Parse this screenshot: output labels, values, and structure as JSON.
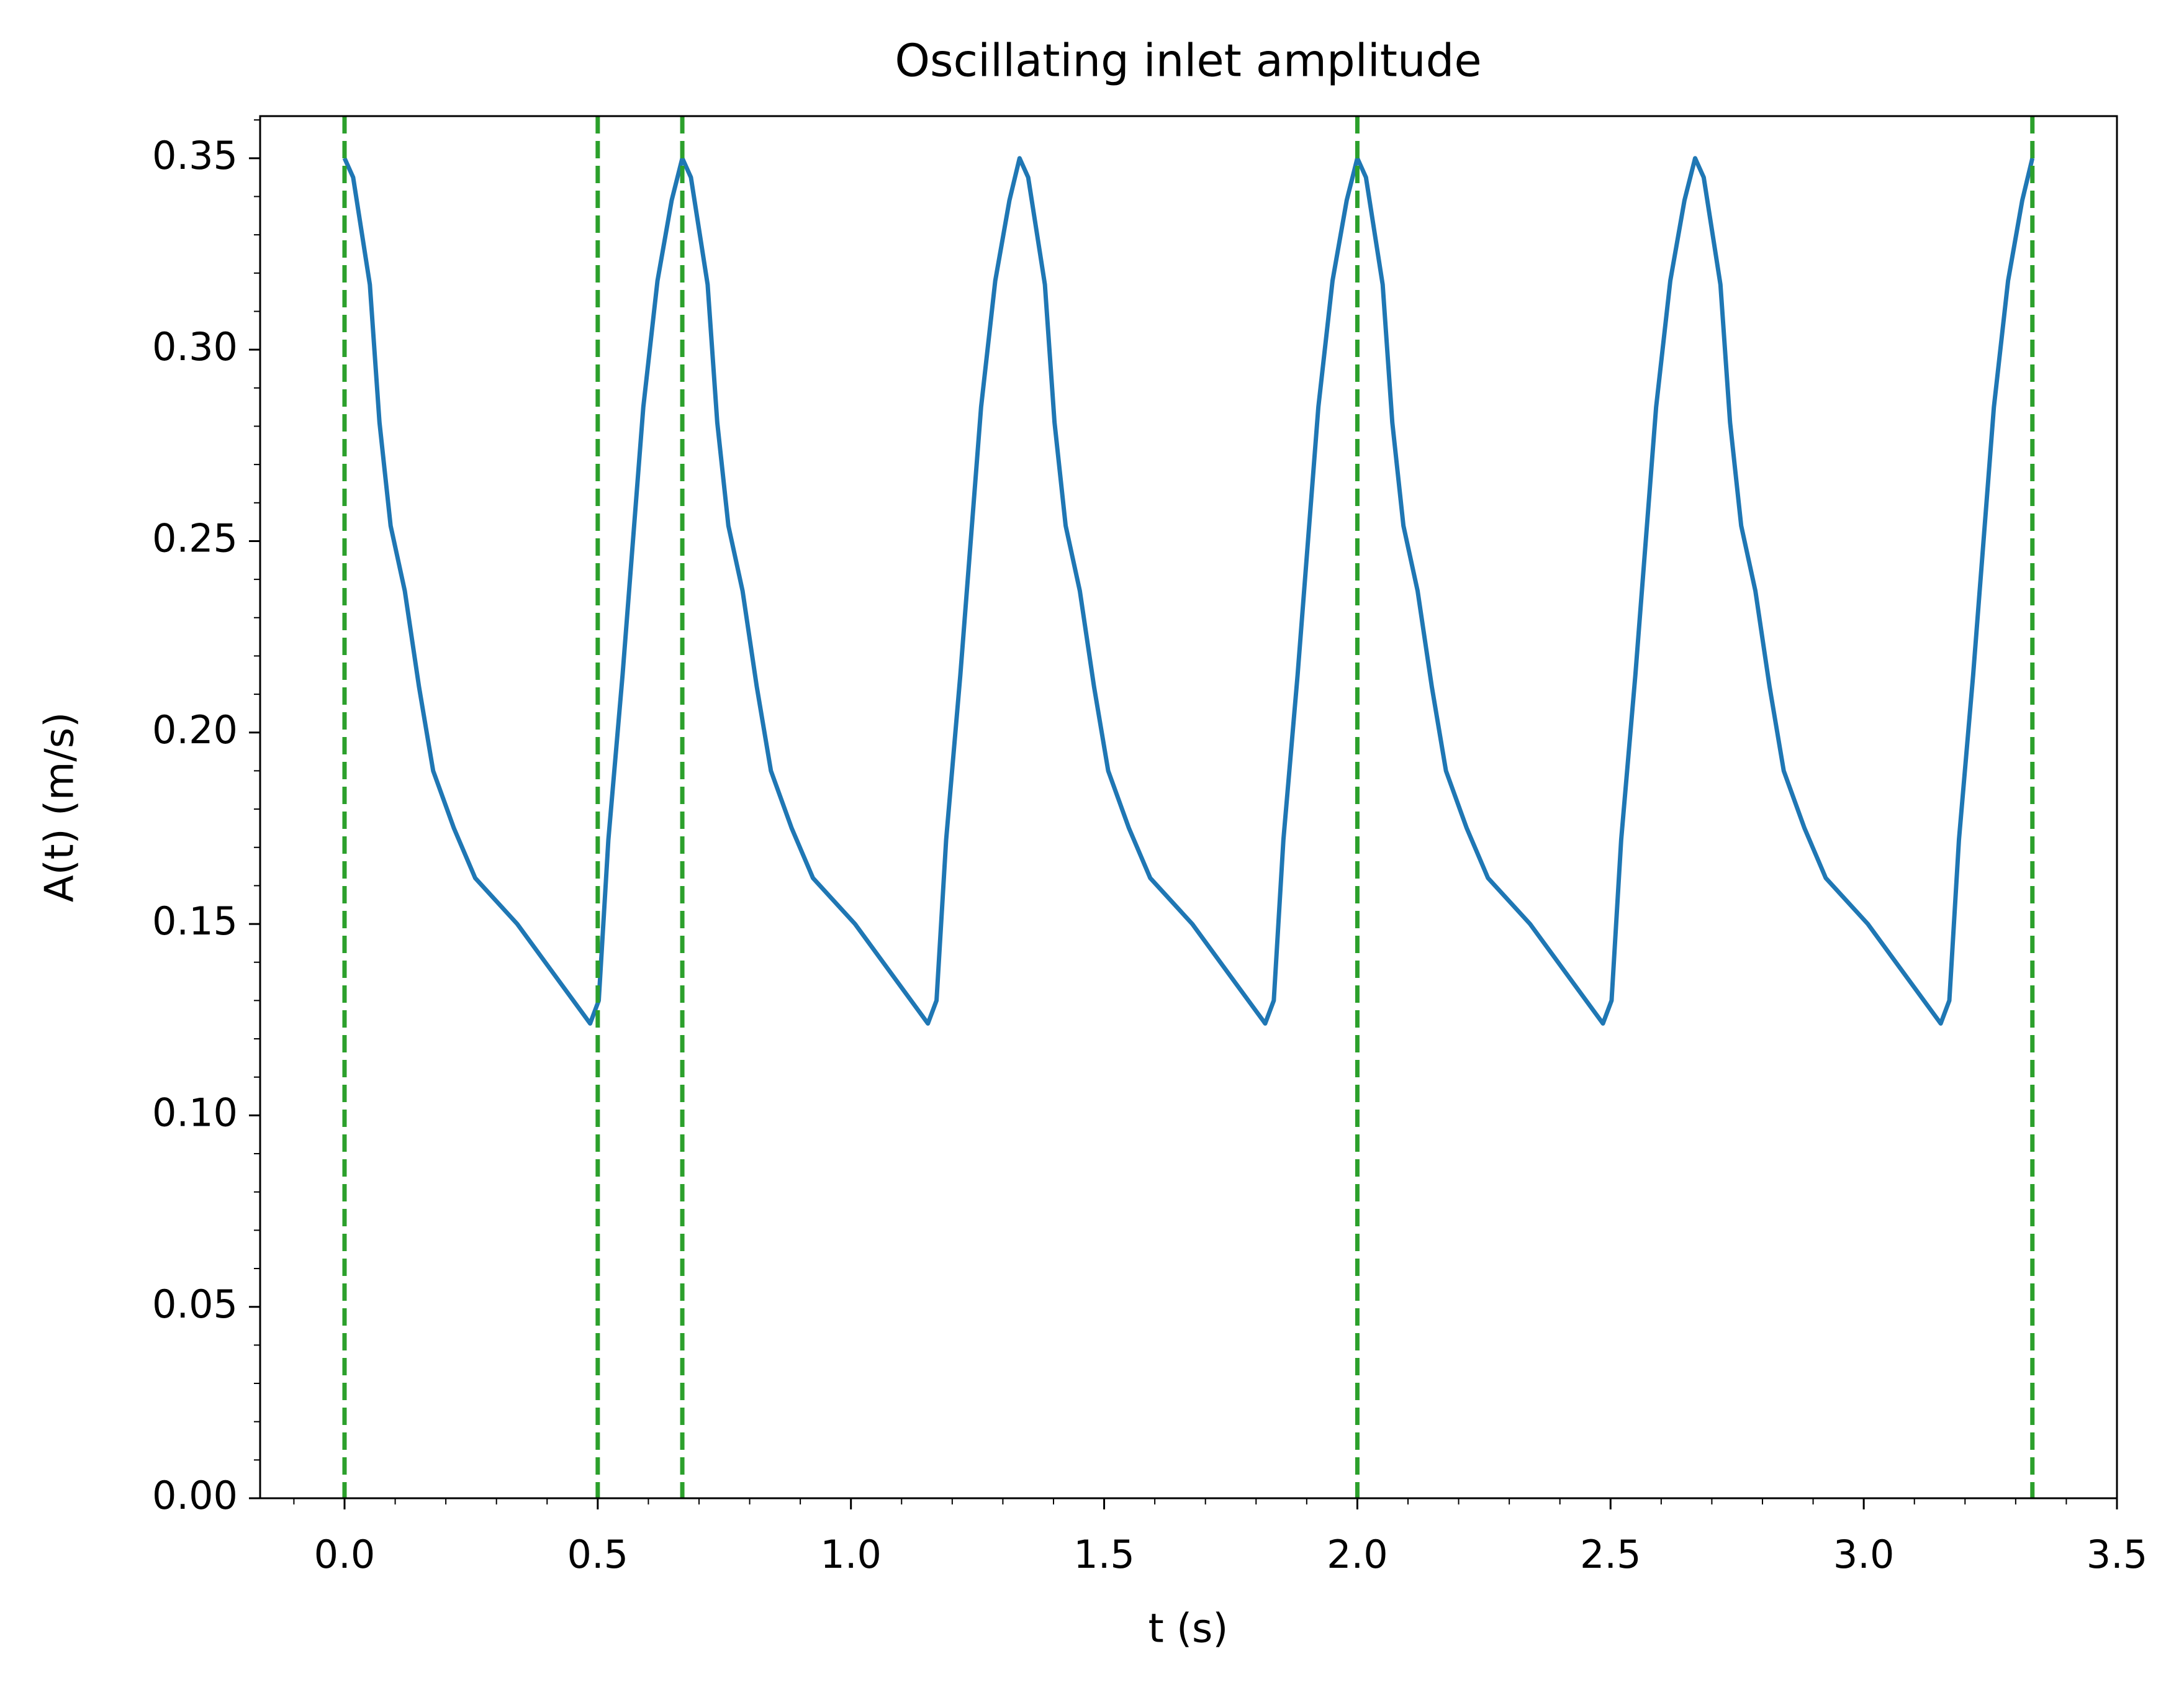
{
  "chart_data": {
    "type": "line",
    "title": "Oscillating inlet amplitude",
    "xlabel": "t (s)",
    "ylabel": "A(t) (m/s)",
    "xlim": [
      -0.1667,
      3.5
    ],
    "ylim": [
      0,
      0.361
    ],
    "xticks": [
      {
        "value": 0,
        "label": "0.0"
      },
      0.5,
      {
        "value": 1,
        "label": "1.0"
      },
      1.5,
      {
        "value": 2,
        "label": "2.0"
      },
      2.5,
      {
        "value": 3,
        "label": "3.0"
      },
      3.5
    ],
    "yticks": [
      {
        "value": 0,
        "label": "0.00"
      },
      0.05,
      {
        "value": 0.1,
        "label": "0.10"
      },
      0.15,
      {
        "value": 0.2,
        "label": "0.20"
      },
      0.25,
      {
        "value": 0.3,
        "label": "0.30"
      },
      0.35
    ],
    "xminorticks": [
      -0.1,
      0.1,
      0.2,
      0.3,
      0.4,
      0.6,
      0.7,
      0.8,
      0.9,
      1.1,
      1.2,
      1.3,
      1.4,
      1.6,
      1.7,
      1.8,
      1.9,
      2.1,
      2.2,
      2.3,
      2.4,
      2.6,
      2.7,
      2.8,
      2.9,
      3.1,
      3.2,
      3.3,
      3.4
    ],
    "yminorticks": [
      0.01,
      0.02,
      0.03,
      0.04,
      0.06,
      0.07,
      0.08,
      0.09,
      0.11,
      0.12,
      0.13,
      0.14,
      0.16,
      0.17,
      0.18,
      0.19,
      0.21,
      0.22,
      0.23,
      0.24,
      0.26,
      0.27,
      0.28,
      0.29,
      0.31,
      0.32,
      0.33,
      0.34,
      0.36
    ],
    "series": [
      {
        "color": "#1f77b4",
        "x": [
          0,
          0.017,
          0.05,
          0.069,
          0.091,
          0.119,
          0.147,
          0.175,
          0.216,
          0.258,
          0.341,
          0.424,
          0.485,
          0.502,
          0.521,
          0.549,
          0.59,
          0.618,
          0.646,
          0.667,
          0.684,
          0.717,
          0.736,
          0.758,
          0.786,
          0.814,
          0.842,
          0.883,
          0.925,
          1.008,
          1.091,
          1.152,
          1.169,
          1.188,
          1.216,
          1.257,
          1.285,
          1.313,
          1.333,
          1.35,
          1.383,
          1.402,
          1.424,
          1.452,
          1.48,
          1.508,
          1.549,
          1.591,
          1.674,
          1.757,
          1.818,
          1.835,
          1.854,
          1.882,
          1.923,
          1.951,
          1.979,
          2.0,
          2.017,
          2.05,
          2.069,
          2.091,
          2.119,
          2.147,
          2.175,
          2.216,
          2.258,
          2.341,
          2.424,
          2.485,
          2.502,
          2.521,
          2.549,
          2.59,
          2.618,
          2.646,
          2.667,
          2.684,
          2.717,
          2.736,
          2.758,
          2.786,
          2.814,
          2.842,
          2.883,
          2.925,
          3.008,
          3.091,
          3.152,
          3.169,
          3.188,
          3.216,
          3.257,
          3.285,
          3.313,
          3.333
        ],
        "values": [
          0.35,
          0.345,
          0.317,
          0.281,
          0.254,
          0.237,
          0.212,
          0.19,
          0.175,
          0.162,
          0.15,
          0.135,
          0.124,
          0.13,
          0.172,
          0.215,
          0.285,
          0.318,
          0.339,
          0.35,
          0.345,
          0.317,
          0.281,
          0.254,
          0.237,
          0.212,
          0.19,
          0.175,
          0.162,
          0.15,
          0.135,
          0.124,
          0.13,
          0.172,
          0.215,
          0.285,
          0.318,
          0.339,
          0.35,
          0.345,
          0.317,
          0.281,
          0.254,
          0.237,
          0.212,
          0.19,
          0.175,
          0.162,
          0.15,
          0.135,
          0.124,
          0.13,
          0.172,
          0.215,
          0.285,
          0.318,
          0.339,
          0.35,
          0.345,
          0.317,
          0.281,
          0.254,
          0.237,
          0.212,
          0.19,
          0.175,
          0.162,
          0.15,
          0.135,
          0.124,
          0.13,
          0.172,
          0.215,
          0.285,
          0.318,
          0.339,
          0.35,
          0.345,
          0.317,
          0.281,
          0.254,
          0.237,
          0.212,
          0.19,
          0.175,
          0.162,
          0.15,
          0.135,
          0.124,
          0.13,
          0.172,
          0.215,
          0.285,
          0.318,
          0.339,
          0.35
        ]
      }
    ],
    "vlines": {
      "color": "#2ca02c",
      "values": [
        0,
        0.5,
        0.667,
        2.0,
        3.333
      ]
    }
  }
}
